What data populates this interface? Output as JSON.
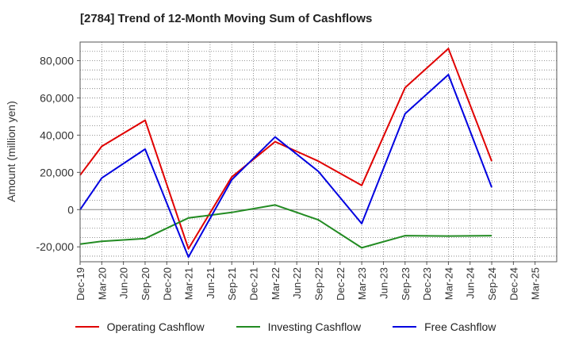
{
  "chart_data": {
    "type": "line",
    "title": "[2784]  Trend of 12-Month Moving Sum of Cashflows",
    "xlabel": "",
    "ylabel": "Amount (million yen)",
    "categories": [
      "Dec-19",
      "Mar-20",
      "Jun-20",
      "Sep-20",
      "Dec-20",
      "Mar-21",
      "Jun-21",
      "Sep-21",
      "Dec-21",
      "Mar-22",
      "Jun-22",
      "Sep-22",
      "Dec-22",
      "Mar-23",
      "Jun-23",
      "Sep-23",
      "Dec-23",
      "Mar-24",
      "Jun-24",
      "Sep-24",
      "Dec-24",
      "Mar-25"
    ],
    "ylim": [
      -28000,
      90000
    ],
    "yticks": [
      -20000,
      0,
      20000,
      40000,
      60000,
      80000
    ],
    "ytick_labels": [
      "-20,000",
      "0",
      "20,000",
      "40,000",
      "60,000",
      "80,000"
    ],
    "grid": true,
    "legend_position": "bottom",
    "series": [
      {
        "name": "Operating Cashflow",
        "color": "#e00000",
        "values": [
          18500,
          34000,
          null,
          48000,
          null,
          -21000,
          null,
          17500,
          null,
          36500,
          null,
          26000,
          null,
          13000,
          null,
          65500,
          null,
          86500,
          null,
          26000,
          null,
          null
        ]
      },
      {
        "name": "Investing Cashflow",
        "color": "#228b22",
        "values": [
          -18500,
          -17000,
          null,
          -15500,
          null,
          -4500,
          null,
          -1500,
          null,
          2500,
          null,
          -5500,
          null,
          -20500,
          null,
          -14000,
          null,
          -14200,
          null,
          -14000,
          null,
          null
        ]
      },
      {
        "name": "Free Cashflow",
        "color": "#0000e0",
        "values": [
          0,
          17000,
          null,
          32500,
          null,
          -25500,
          null,
          16000,
          null,
          39000,
          null,
          20500,
          null,
          -7500,
          null,
          51500,
          null,
          72500,
          null,
          12000,
          null,
          null
        ]
      }
    ]
  }
}
